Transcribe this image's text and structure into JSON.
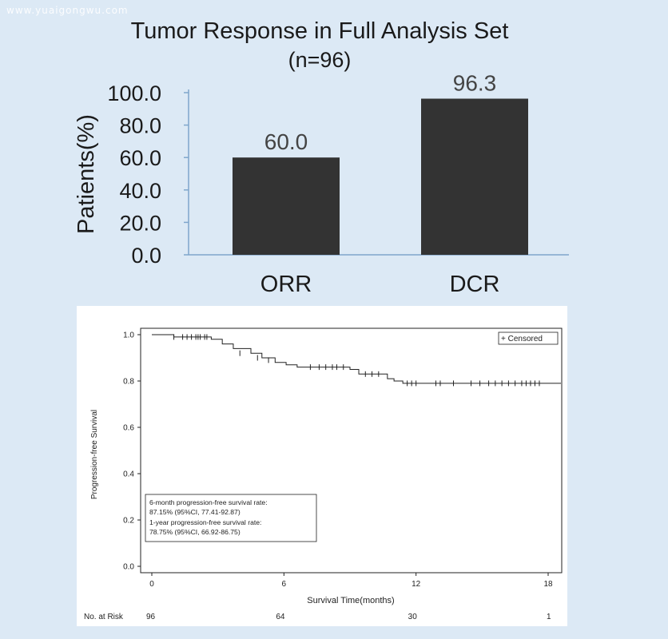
{
  "watermark": "www.yuaigongwu.com",
  "chart_data": [
    {
      "type": "bar",
      "title": "Tumor Response in Full Analysis Set",
      "subtitle": "(n=96)",
      "ylabel": "Patients(%)",
      "xlabel": "",
      "categories": [
        "ORR",
        "DCR"
      ],
      "values": [
        60.0,
        96.3
      ],
      "value_labels": [
        "60.0",
        "96.3"
      ],
      "ylim": [
        0,
        100
      ],
      "yticks": [
        "0.0",
        "20.0",
        "40.0",
        "60.0",
        "80.0",
        "100.0"
      ],
      "bar_color": "#333333",
      "axis_color": "#7fa6cc",
      "grid": false
    },
    {
      "type": "line",
      "subtype": "kaplan-meier",
      "xlabel": "Survival Time(months)",
      "ylabel": "Progression-free Survival",
      "xlim": [
        0,
        18
      ],
      "ylim": [
        0,
        1
      ],
      "xticks": [
        "0",
        "6",
        "12",
        "18"
      ],
      "yticks": [
        "0.0",
        "0.2",
        "0.4",
        "0.6",
        "0.8",
        "1.0"
      ],
      "legend": {
        "label": "+ Censored",
        "position": "top-right"
      },
      "annotation": [
        "6-month progression-free survival rate:",
        "87.15% (95%CI, 77.41-92.87)",
        "1-year progression-free survival rate:",
        "78.75% (95%CI, 66.92-86.75)"
      ],
      "at_risk": {
        "label": "No. at Risk",
        "times": [
          0,
          6,
          12,
          18
        ],
        "counts": [
          "96",
          "64",
          "30",
          "1"
        ]
      },
      "steps": [
        {
          "t": 0,
          "s": 1.0
        },
        {
          "t": 1.0,
          "s": 0.99
        },
        {
          "t": 2.7,
          "s": 0.98
        },
        {
          "t": 3.2,
          "s": 0.96
        },
        {
          "t": 3.7,
          "s": 0.94
        },
        {
          "t": 4.5,
          "s": 0.92
        },
        {
          "t": 5.0,
          "s": 0.9
        },
        {
          "t": 5.6,
          "s": 0.88
        },
        {
          "t": 6.1,
          "s": 0.87
        },
        {
          "t": 6.6,
          "s": 0.86
        },
        {
          "t": 9.0,
          "s": 0.85
        },
        {
          "t": 9.4,
          "s": 0.83
        },
        {
          "t": 10.7,
          "s": 0.81
        },
        {
          "t": 11.0,
          "s": 0.8
        },
        {
          "t": 11.4,
          "s": 0.79
        },
        {
          "t": 18.4,
          "s": 0.79
        }
      ],
      "censored": [
        {
          "t": 1.0,
          "s": 0.99
        },
        {
          "t": 1.4,
          "s": 0.99
        },
        {
          "t": 1.6,
          "s": 0.99
        },
        {
          "t": 1.8,
          "s": 0.99
        },
        {
          "t": 2.0,
          "s": 0.99
        },
        {
          "t": 2.1,
          "s": 0.99
        },
        {
          "t": 2.2,
          "s": 0.99
        },
        {
          "t": 2.4,
          "s": 0.99
        },
        {
          "t": 2.5,
          "s": 0.99
        },
        {
          "t": 4.0,
          "s": 0.92
        },
        {
          "t": 4.8,
          "s": 0.9
        },
        {
          "t": 5.3,
          "s": 0.89
        },
        {
          "t": 7.2,
          "s": 0.86
        },
        {
          "t": 7.6,
          "s": 0.86
        },
        {
          "t": 7.9,
          "s": 0.86
        },
        {
          "t": 8.2,
          "s": 0.86
        },
        {
          "t": 8.4,
          "s": 0.86
        },
        {
          "t": 8.7,
          "s": 0.86
        },
        {
          "t": 9.7,
          "s": 0.83
        },
        {
          "t": 10.0,
          "s": 0.83
        },
        {
          "t": 10.3,
          "s": 0.83
        },
        {
          "t": 11.6,
          "s": 0.79
        },
        {
          "t": 11.8,
          "s": 0.79
        },
        {
          "t": 12.0,
          "s": 0.79
        },
        {
          "t": 12.9,
          "s": 0.79
        },
        {
          "t": 13.1,
          "s": 0.79
        },
        {
          "t": 13.7,
          "s": 0.79
        },
        {
          "t": 14.5,
          "s": 0.79
        },
        {
          "t": 14.9,
          "s": 0.79
        },
        {
          "t": 15.3,
          "s": 0.79
        },
        {
          "t": 15.6,
          "s": 0.79
        },
        {
          "t": 15.9,
          "s": 0.79
        },
        {
          "t": 16.2,
          "s": 0.79
        },
        {
          "t": 16.5,
          "s": 0.79
        },
        {
          "t": 16.8,
          "s": 0.79
        },
        {
          "t": 17.0,
          "s": 0.79
        },
        {
          "t": 17.2,
          "s": 0.79
        },
        {
          "t": 17.4,
          "s": 0.79
        },
        {
          "t": 17.6,
          "s": 0.79
        }
      ]
    }
  ]
}
